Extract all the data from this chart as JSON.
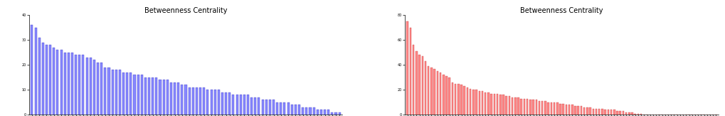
{
  "title": "Betweenness Centrality",
  "blue_color": "#8888ff",
  "blue_edge_color": "#4444cc",
  "red_color": "#ff8888",
  "red_edge_color": "#cc4444",
  "blue_ylim": [
    0,
    40
  ],
  "red_ylim": [
    0,
    80
  ],
  "blue_yticks": [
    0,
    10,
    20,
    30,
    40
  ],
  "red_yticks": [
    0,
    20,
    40,
    60,
    80
  ],
  "blue_values": [
    36,
    35,
    31,
    29,
    28,
    28,
    27,
    26,
    26,
    25,
    25,
    25,
    24,
    24,
    24,
    23,
    23,
    22,
    21,
    21,
    19,
    19,
    18,
    18,
    18,
    17,
    17,
    17,
    16,
    16,
    16,
    15,
    15,
    15,
    15,
    14,
    14,
    14,
    13,
    13,
    13,
    12,
    12,
    11,
    11,
    11,
    11,
    11,
    10,
    10,
    10,
    10,
    9,
    9,
    9,
    8,
    8,
    8,
    8,
    8,
    7,
    7,
    7,
    6,
    6,
    6,
    6,
    5,
    5,
    5,
    5,
    4,
    4,
    4,
    3,
    3,
    3,
    3,
    2,
    2,
    2,
    2,
    1,
    1,
    1
  ],
  "red_values": [
    75,
    70,
    56,
    51,
    48,
    47,
    43,
    39,
    38,
    37,
    35,
    34,
    32,
    31,
    30,
    26,
    25,
    25,
    24,
    23,
    22,
    21,
    20,
    20,
    19,
    19,
    18,
    18,
    17,
    17,
    17,
    16,
    16,
    15,
    15,
    14,
    14,
    14,
    13,
    13,
    13,
    12,
    12,
    12,
    11,
    11,
    11,
    10,
    10,
    10,
    10,
    9,
    9,
    8,
    8,
    8,
    7,
    7,
    7,
    6,
    6,
    6,
    5,
    5,
    5,
    5,
    4,
    4,
    4,
    4,
    3,
    3,
    3,
    2,
    2,
    2,
    1,
    1,
    1,
    0,
    0,
    0,
    0,
    0,
    0,
    0,
    0,
    0,
    0,
    0,
    0,
    0,
    0,
    0,
    0,
    0,
    0,
    0,
    0,
    0,
    0,
    0,
    0,
    0
  ],
  "tick_fontsize": 3.5,
  "title_fontsize": 7,
  "label_fontsize": 3,
  "bar_width": 0.6
}
